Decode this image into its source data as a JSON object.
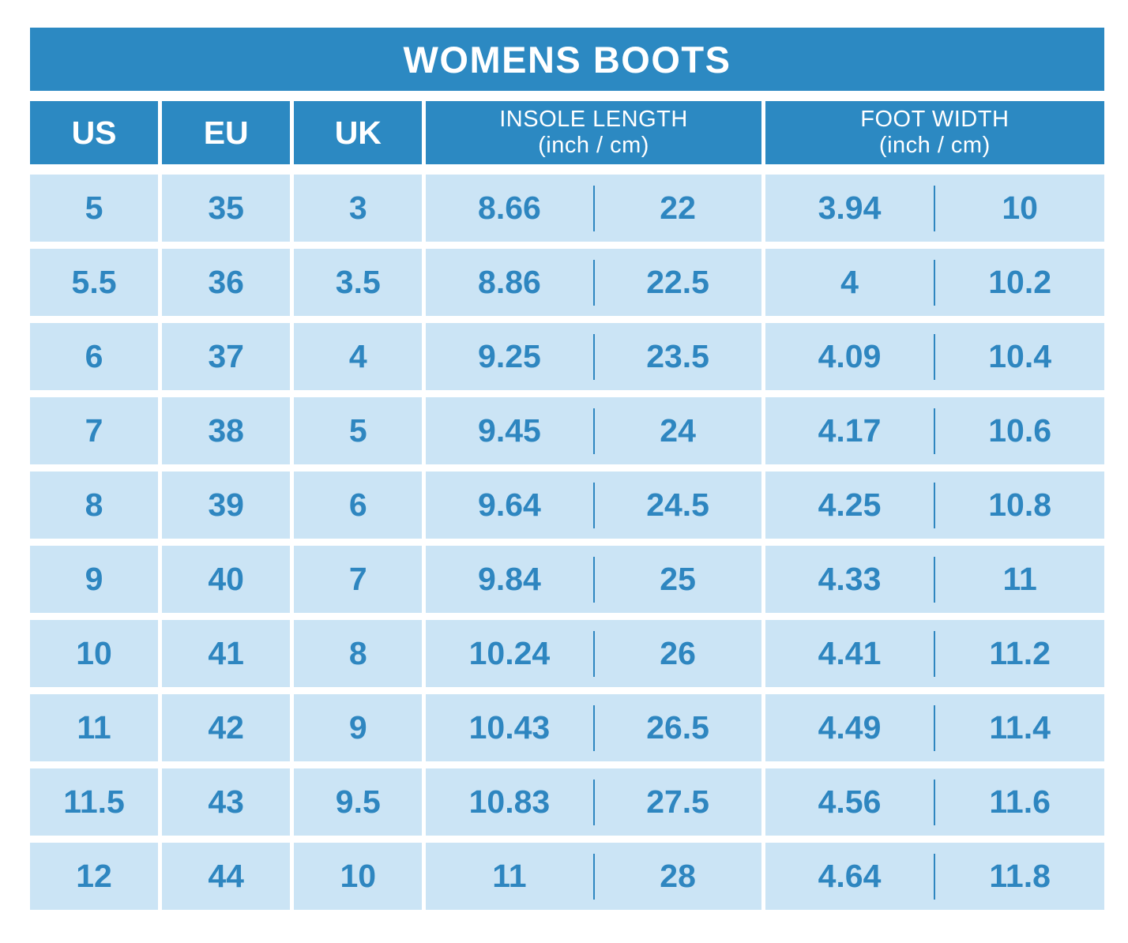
{
  "title": "WOMENS BOOTS",
  "colors": {
    "header_blue": "#2c89c2",
    "cell_bg": "#cbe4f5",
    "text_blue": "#2e86c0",
    "page_bg": "#ffffff"
  },
  "table": {
    "columns": [
      {
        "label": "US"
      },
      {
        "label": "EU"
      },
      {
        "label": "UK"
      },
      {
        "label": "INSOLE LENGTH",
        "sublabel": "(inch / cm)"
      },
      {
        "label": "FOOT WIDTH",
        "sublabel": "(inch / cm)"
      }
    ],
    "rows": [
      {
        "us": "5",
        "eu": "35",
        "uk": "3",
        "insole_inch": "8.66",
        "insole_cm": "22",
        "foot_inch": "3.94",
        "foot_cm": "10"
      },
      {
        "us": "5.5",
        "eu": "36",
        "uk": "3.5",
        "insole_inch": "8.86",
        "insole_cm": "22.5",
        "foot_inch": "4",
        "foot_cm": "10.2"
      },
      {
        "us": "6",
        "eu": "37",
        "uk": "4",
        "insole_inch": "9.25",
        "insole_cm": "23.5",
        "foot_inch": "4.09",
        "foot_cm": "10.4"
      },
      {
        "us": "7",
        "eu": "38",
        "uk": "5",
        "insole_inch": "9.45",
        "insole_cm": "24",
        "foot_inch": "4.17",
        "foot_cm": "10.6"
      },
      {
        "us": "8",
        "eu": "39",
        "uk": "6",
        "insole_inch": "9.64",
        "insole_cm": "24.5",
        "foot_inch": "4.25",
        "foot_cm": "10.8"
      },
      {
        "us": "9",
        "eu": "40",
        "uk": "7",
        "insole_inch": "9.84",
        "insole_cm": "25",
        "foot_inch": "4.33",
        "foot_cm": "11"
      },
      {
        "us": "10",
        "eu": "41",
        "uk": "8",
        "insole_inch": "10.24",
        "insole_cm": "26",
        "foot_inch": "4.41",
        "foot_cm": "11.2"
      },
      {
        "us": "11",
        "eu": "42",
        "uk": "9",
        "insole_inch": "10.43",
        "insole_cm": "26.5",
        "foot_inch": "4.49",
        "foot_cm": "11.4"
      },
      {
        "us": "11.5",
        "eu": "43",
        "uk": "9.5",
        "insole_inch": "10.83",
        "insole_cm": "27.5",
        "foot_inch": "4.56",
        "foot_cm": "11.6"
      },
      {
        "us": "12",
        "eu": "44",
        "uk": "10",
        "insole_inch": "11",
        "insole_cm": "28",
        "foot_inch": "4.64",
        "foot_cm": "11.8"
      }
    ]
  },
  "chart_data": {
    "type": "table",
    "title": "WOMENS BOOTS",
    "columns": [
      "US",
      "EU",
      "UK",
      "INSOLE LENGTH (inch)",
      "INSOLE LENGTH (cm)",
      "FOOT WIDTH (inch)",
      "FOOT WIDTH (cm)"
    ],
    "rows": [
      [
        5,
        35,
        3,
        8.66,
        22,
        3.94,
        10
      ],
      [
        5.5,
        36,
        3.5,
        8.86,
        22.5,
        4,
        10.2
      ],
      [
        6,
        37,
        4,
        9.25,
        23.5,
        4.09,
        10.4
      ],
      [
        7,
        38,
        5,
        9.45,
        24,
        4.17,
        10.6
      ],
      [
        8,
        39,
        6,
        9.64,
        24.5,
        4.25,
        10.8
      ],
      [
        9,
        40,
        7,
        9.84,
        25,
        4.33,
        11
      ],
      [
        10,
        41,
        8,
        10.24,
        26,
        4.41,
        11.2
      ],
      [
        11,
        42,
        9,
        10.43,
        26.5,
        4.49,
        11.4
      ],
      [
        11.5,
        43,
        9.5,
        10.83,
        27.5,
        4.56,
        11.6
      ],
      [
        12,
        44,
        10,
        11,
        28,
        4.64,
        11.8
      ]
    ]
  }
}
